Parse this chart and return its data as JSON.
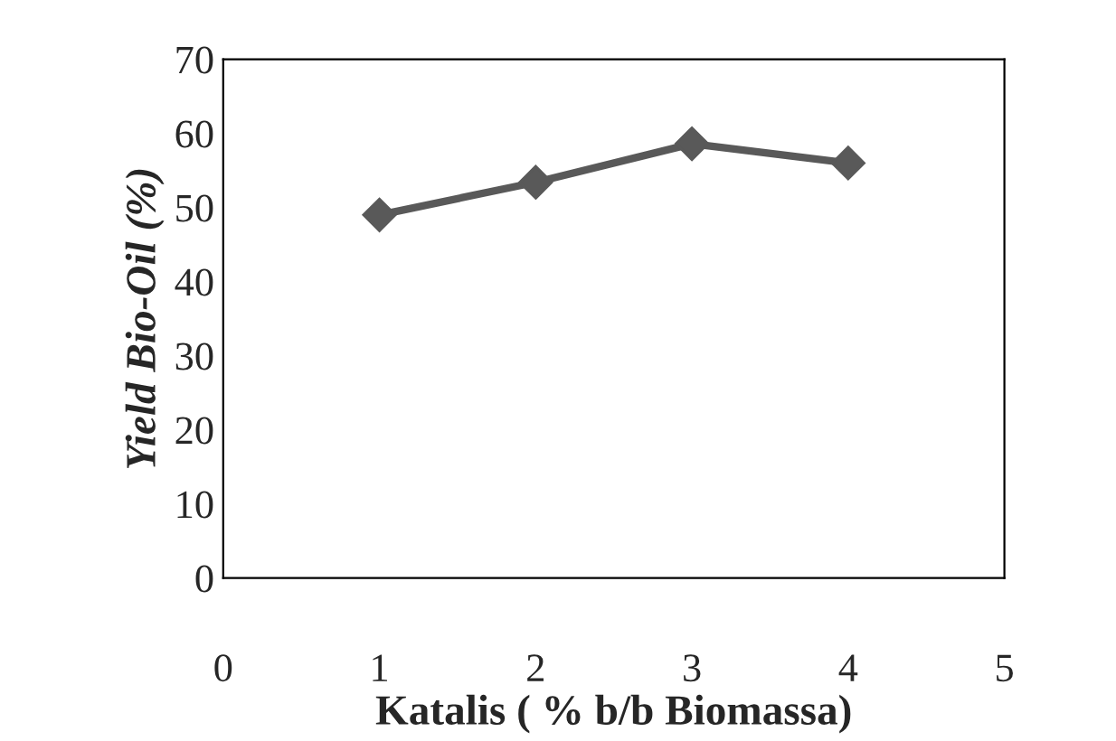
{
  "chart_data": {
    "type": "line",
    "xlabel": "Katalis ( % b/b Biomassa)",
    "ylabel": "Yield Bio-Oil (%)",
    "x": [
      1,
      2,
      3,
      4
    ],
    "series": [
      {
        "color": "#595959",
        "values": [
          49.0,
          53.4,
          58.6,
          56.0
        ]
      }
    ],
    "xlim": [
      0,
      5
    ],
    "xticks": [
      0,
      1,
      2,
      3,
      4,
      5
    ],
    "ylim": [
      0,
      70
    ],
    "yticks": [
      0,
      10,
      20,
      30,
      40,
      50,
      60,
      70
    ],
    "marker": "diamond",
    "line_style": "solid",
    "grid": false,
    "legend": false
  }
}
